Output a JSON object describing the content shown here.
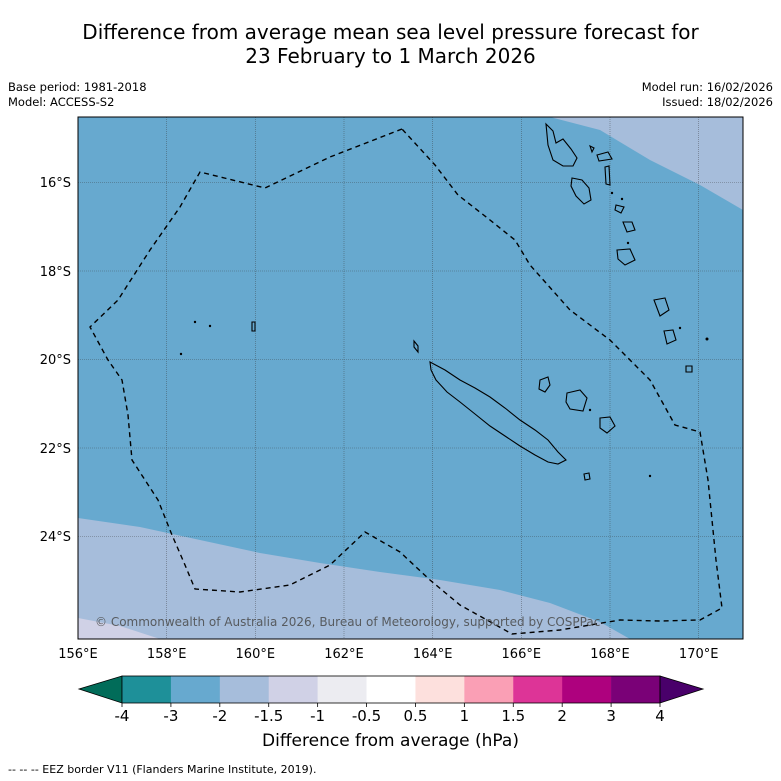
{
  "title": {
    "line1": "Difference from average mean sea level pressure forecast for",
    "line2": "23 February to 1 March 2026"
  },
  "info_left": {
    "base_period": "Base period: 1981-2018",
    "model": "Model: ACCESS-S2"
  },
  "info_right": {
    "model_run": "Model run: 16/02/2026",
    "issued": "Issued: 18/02/2026"
  },
  "lat_labels": [
    "16°S",
    "18°S",
    "20°S",
    "22°S",
    "24°S"
  ],
  "lon_labels": [
    "156°E",
    "158°E",
    "160°E",
    "162°E",
    "164°E",
    "166°E",
    "168°E",
    "170°E"
  ],
  "map_extent": {
    "lon_min": 156,
    "lon_max": 171,
    "lat_min": -26,
    "lat_max": -14.5
  },
  "copyright": "© Commonwealth of Australia 2026, Bureau of Meteorology, supported by COSPPac",
  "colorbar": {
    "ticks": [
      "-4",
      "-3",
      "-2",
      "-1.5",
      "-1",
      "-0.5",
      "0.5",
      "1",
      "1.5",
      "2",
      "3",
      "4"
    ],
    "colors": [
      "#1e9099",
      "#67a9cf",
      "#a6bddb",
      "#d0d1e6",
      "#ececf1",
      "#ffffff",
      "#fde0dd",
      "#fa9fb5",
      "#dd3497",
      "#ae017e",
      "#7a0177"
    ],
    "under_color": "#016c59",
    "over_color": "#49006a",
    "label": "Difference from average (hPa)"
  },
  "field_colors": {
    "main": "#67a9cf",
    "light": "#a6bddb",
    "lightest": "#d0d1e6"
  },
  "footnote": "--  --  -- EEZ border V11 (Flanders Marine Institute, 2019)."
}
